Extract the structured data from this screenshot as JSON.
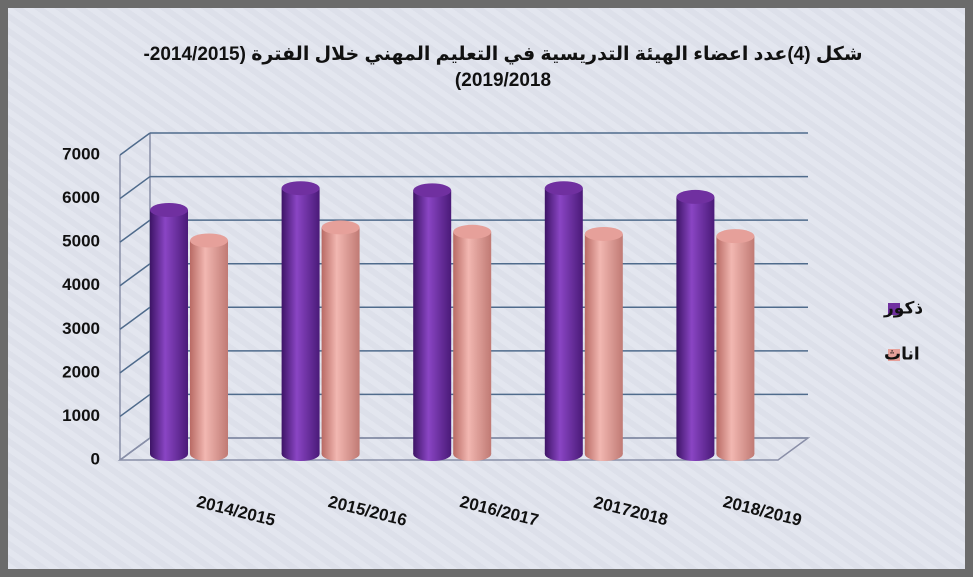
{
  "chart_data": {
    "type": "bar",
    "title": "شكل (4)عدد اعضاء الهيئة التدريسية  في التعليم المهني خلال الفترة (2014/2015-2019/2018)",
    "categories": [
      "2014/2015",
      "2015/2016",
      "2016/2017",
      "20172018",
      "2018/2019"
    ],
    "series": [
      {
        "name": "ذكور",
        "color": "#7030a0",
        "values": [
          5600,
          6100,
          6050,
          6100,
          5900
        ]
      },
      {
        "name": "اناث",
        "color": "#e6a09a",
        "values": [
          4900,
          5200,
          5100,
          5050,
          5000
        ]
      }
    ],
    "ylim": [
      0,
      7000
    ],
    "yticks": [
      0,
      1000,
      2000,
      3000,
      4000,
      5000,
      6000,
      7000
    ],
    "grid": true,
    "legend": "right"
  }
}
